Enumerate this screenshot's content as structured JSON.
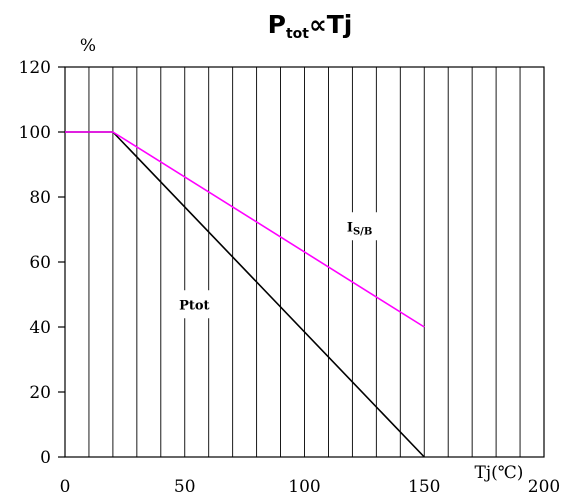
{
  "chart_data": {
    "type": "line",
    "title": {
      "main_before": "P",
      "main_sub": "tot",
      "main_after": "∝Tj"
    },
    "ylabel": "%",
    "xlabel": "Tj(℃)",
    "xlim": [
      0,
      200
    ],
    "ylim": [
      0,
      120
    ],
    "xticks": [
      0,
      50,
      100,
      150,
      200
    ],
    "yticks": [
      0,
      20,
      40,
      60,
      80,
      100,
      120
    ],
    "x_minor_step": 10,
    "grid": "vertical",
    "series": [
      {
        "color": "#000000",
        "points": [
          [
            0,
            100
          ],
          [
            20,
            100
          ],
          [
            150,
            0
          ]
        ]
      },
      {
        "color": "#ff00ff",
        "points": [
          [
            0,
            100
          ],
          [
            20,
            100
          ],
          [
            150,
            40
          ]
        ]
      }
    ],
    "annotations": [
      {
        "text": "Ptot",
        "sub": "",
        "x": 54,
        "y": 47
      },
      {
        "text": "I",
        "sub": "S/B",
        "x": 123,
        "y": 71
      }
    ]
  }
}
